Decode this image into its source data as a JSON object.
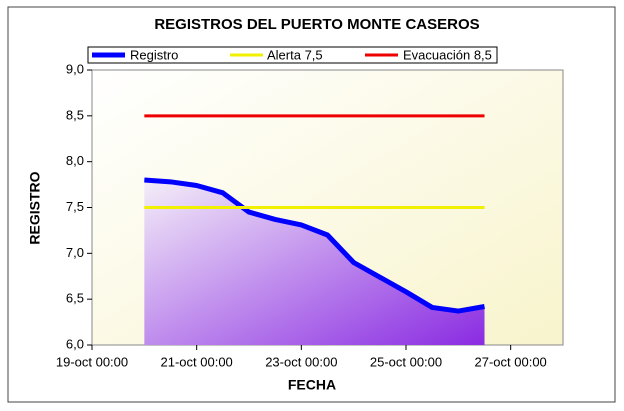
{
  "chart_data": {
    "type": "area",
    "title": "REGISTROS DEL PUERTO MONTE CASEROS",
    "x_label": "FECHA",
    "y_label": "REGISTRO",
    "x": [
      "20-oct 00:00",
      "20-oct 12:00",
      "21-oct 00:00",
      "21-oct 12:00",
      "22-oct 00:00",
      "22-oct 12:00",
      "23-oct 00:00",
      "23-oct 12:00",
      "24-oct 00:00",
      "24-oct 12:00",
      "25-oct 00:00",
      "25-oct 12:00",
      "26-oct 00:00",
      "26-oct 12:00"
    ],
    "series": [
      {
        "name": "Registro",
        "color": "#0000ff",
        "values": [
          7.8,
          7.78,
          7.74,
          7.66,
          7.45,
          7.37,
          7.31,
          7.2,
          6.9,
          6.74,
          6.58,
          6.41,
          6.37,
          6.42
        ]
      },
      {
        "name": "Alerta 7,5",
        "color": "#f0f000",
        "values": [
          7.5,
          7.5,
          7.5,
          7.5,
          7.5,
          7.5,
          7.5,
          7.5,
          7.5,
          7.5,
          7.5,
          7.5,
          7.5,
          7.5
        ]
      },
      {
        "name": "Evacuación 8,5",
        "color": "#ee0000",
        "values": [
          8.5,
          8.5,
          8.5,
          8.5,
          8.5,
          8.5,
          8.5,
          8.5,
          8.5,
          8.5,
          8.5,
          8.5,
          8.5,
          8.5
        ]
      }
    ],
    "xlim": [
      "19-oct 00:00",
      "28-oct 00:00"
    ],
    "xticks": [
      "19-oct 00:00",
      "21-oct 00:00",
      "23-oct 00:00",
      "25-oct 00:00",
      "27-oct 00:00"
    ],
    "ylim": [
      6,
      9
    ],
    "yticks": [
      {
        "value": 6,
        "label": "6,0"
      },
      {
        "value": 6.5,
        "label": "6,5"
      },
      {
        "value": 7,
        "label": "7,0"
      },
      {
        "value": 7.5,
        "label": "7,5"
      },
      {
        "value": 8,
        "label": "8,0"
      },
      {
        "value": 8.5,
        "label": "8,5"
      },
      {
        "value": 9,
        "label": "9,0"
      }
    ],
    "grid": false
  }
}
